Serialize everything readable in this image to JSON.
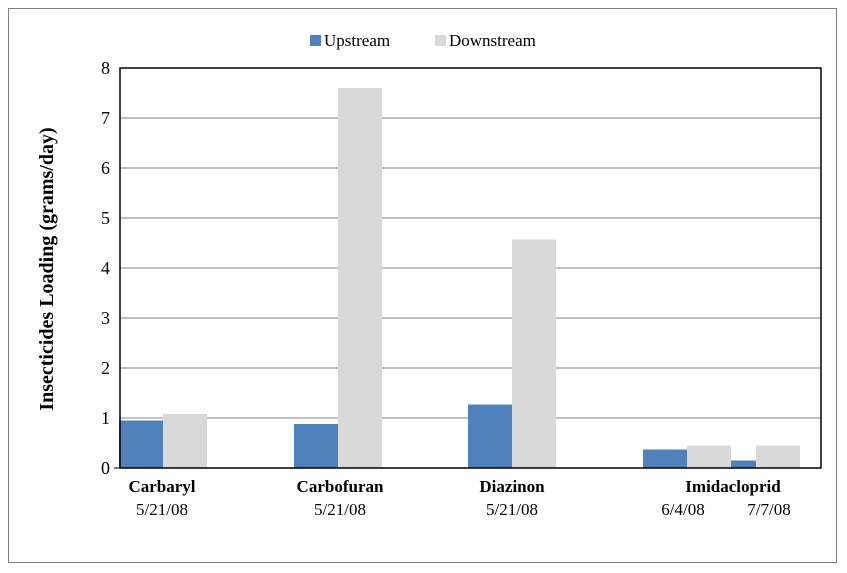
{
  "chart_data": {
    "type": "bar",
    "title": "",
    "ylabel": "Insecticides Loading (grams/day)",
    "xlabel": "",
    "ylim": [
      0,
      8
    ],
    "yticks": [
      0,
      1,
      2,
      3,
      4,
      5,
      6,
      7,
      8
    ],
    "grid": true,
    "legend_position": "top",
    "groups": [
      {
        "label": "Carbaryl",
        "dates": [
          "5/21/08"
        ]
      },
      {
        "label": "Carbofuran",
        "dates": [
          "5/21/08"
        ]
      },
      {
        "label": "Diazinon",
        "dates": [
          "5/21/08"
        ]
      },
      {
        "label": "Imidacloprid",
        "dates": [
          "6/4/08",
          "7/7/08"
        ]
      }
    ],
    "categories": [
      "Carbaryl 5/21/08",
      "Carbofuran 5/21/08",
      "Diazinon 5/21/08",
      "Imidacloprid 6/4/08",
      "Imidacloprid 7/7/08"
    ],
    "series": [
      {
        "name": "Upstream",
        "color": "#4f81bd",
        "values": [
          0.95,
          0.88,
          1.27,
          0.37,
          0.15
        ]
      },
      {
        "name": "Downstream",
        "color": "#d9d9d9",
        "values": [
          1.08,
          7.6,
          4.57,
          0.45,
          0.45
        ]
      }
    ]
  }
}
